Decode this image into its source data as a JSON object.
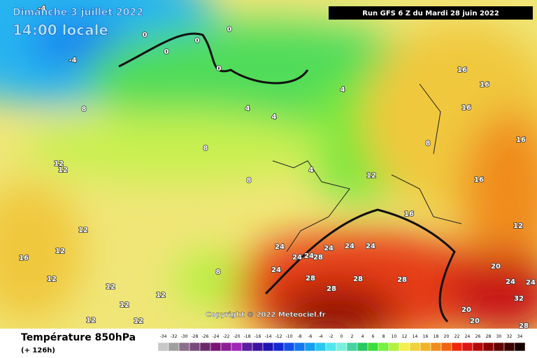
{
  "header": {
    "date": "Dimanche 3 juillet 2022",
    "time": "14:00 locale",
    "run": "Run GFS 6 Z du Mardi 28 juin 2022"
  },
  "copyright": "Copyright © 2022 Meteociel.fr",
  "legend": {
    "title": "Température 850hPa",
    "lead": "(+ 126h)",
    "scale": [
      -34,
      -32,
      -30,
      -28,
      -26,
      -24,
      -22,
      -20,
      -18,
      -16,
      -14,
      -12,
      -10,
      -8,
      -6,
      -4,
      -2,
      0,
      2,
      4,
      6,
      8,
      10,
      12,
      14,
      16,
      18,
      20,
      22,
      24,
      26,
      28,
      30,
      32,
      34
    ],
    "colors": [
      "#c8c8c8",
      "#a0a0a0",
      "#8c6e8c",
      "#7a4a7a",
      "#6a2a6a",
      "#7a1478",
      "#8c1e96",
      "#a028b4",
      "#5a1ea0",
      "#3c14a0",
      "#1e14b4",
      "#1428d2",
      "#1450e6",
      "#1478f0",
      "#14a0f0",
      "#28c8f0",
      "#50e6f0",
      "#78f0dc",
      "#46d2a0",
      "#28c864",
      "#3cdc3c",
      "#78f03c",
      "#b4f03c",
      "#f0f050",
      "#f0d23c",
      "#f0b428",
      "#f08c1e",
      "#f06414",
      "#f0280a",
      "#dc1414",
      "#b40a0a",
      "#8c0000",
      "#640000",
      "#3c0000",
      "#140000"
    ]
  },
  "map_labels": [
    "0",
    "0",
    "0",
    "0",
    "0",
    "-4",
    "-4",
    "4",
    "4",
    "4",
    "4",
    "8",
    "8",
    "8",
    "8",
    "8",
    "12",
    "12",
    "12",
    "12",
    "12",
    "12",
    "12",
    "12",
    "12",
    "12",
    "16",
    "16",
    "16",
    "16",
    "16",
    "16",
    "16",
    "24",
    "24",
    "24",
    "24",
    "24",
    "24",
    "24",
    "28",
    "28",
    "28",
    "28",
    "20",
    "20",
    "20",
    "24",
    "24",
    "28",
    "28",
    "32",
    "12",
    "12"
  ]
}
